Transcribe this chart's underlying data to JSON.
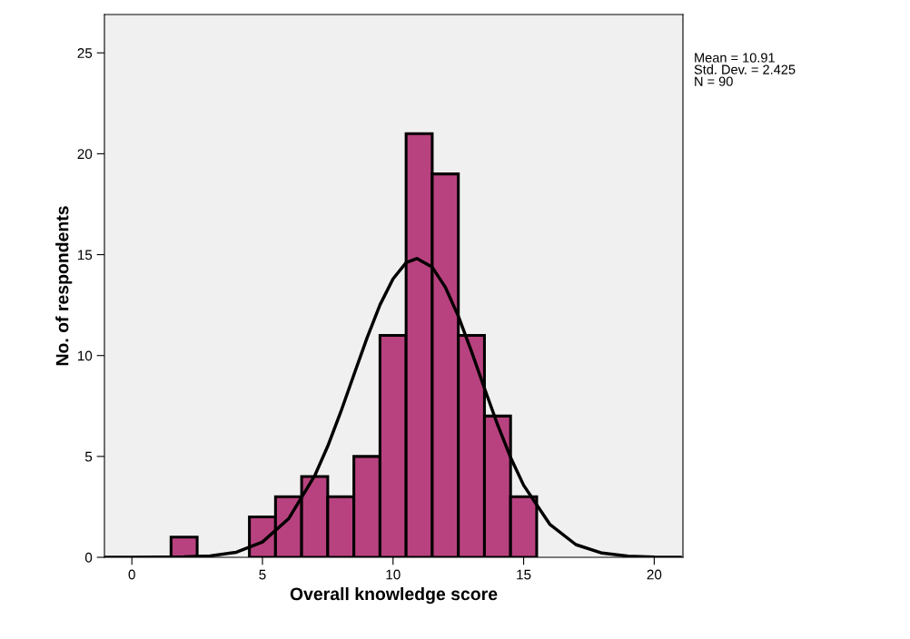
{
  "chart_data": {
    "type": "histogram",
    "xlabel": "Overall knowledge score",
    "ylabel": "No. of respondents",
    "series": [
      {
        "color": "#b8427f",
        "bins": [
          1.5,
          2.5,
          3.5,
          4.5,
          5.5,
          6.5,
          7.5,
          8.5,
          9.5,
          10.5,
          11.5,
          12.5,
          13.5,
          14.5,
          15.5
        ],
        "values": [
          1,
          0,
          0,
          2,
          3,
          4,
          3,
          5,
          11,
          21,
          19,
          11,
          7,
          3
        ]
      },
      {
        "type": "line",
        "color": "#000000",
        "x": [
          -1,
          0,
          2,
          3,
          4,
          5,
          6,
          7,
          7.5,
          8,
          8.5,
          9,
          9.5,
          10,
          10.5,
          10.91,
          11.5,
          12,
          12.5,
          13,
          13.5,
          14,
          14.5,
          15,
          16,
          17,
          18,
          19,
          20,
          21
        ],
        "values": [
          0,
          0,
          0.02,
          0.07,
          0.25,
          0.76,
          1.91,
          4.04,
          5.51,
          7.21,
          9.04,
          10.86,
          12.51,
          13.8,
          14.6,
          14.81,
          14.38,
          13.39,
          11.95,
          10.22,
          8.38,
          6.58,
          4.95,
          3.57,
          1.64,
          0.63,
          0.21,
          0.06,
          0.01,
          0
        ]
      }
    ],
    "xlim": [
      -1.05,
      21.1
    ],
    "ylim": [
      0,
      26.9
    ],
    "xticks": [
      0,
      5,
      10,
      15,
      20
    ],
    "yticks": [
      0,
      5,
      10,
      15,
      20,
      25
    ],
    "grid": false,
    "legend": false,
    "annotations": [
      "Mean = 10.91\nStd. Dev. = 2.425\nN = 90"
    ]
  }
}
